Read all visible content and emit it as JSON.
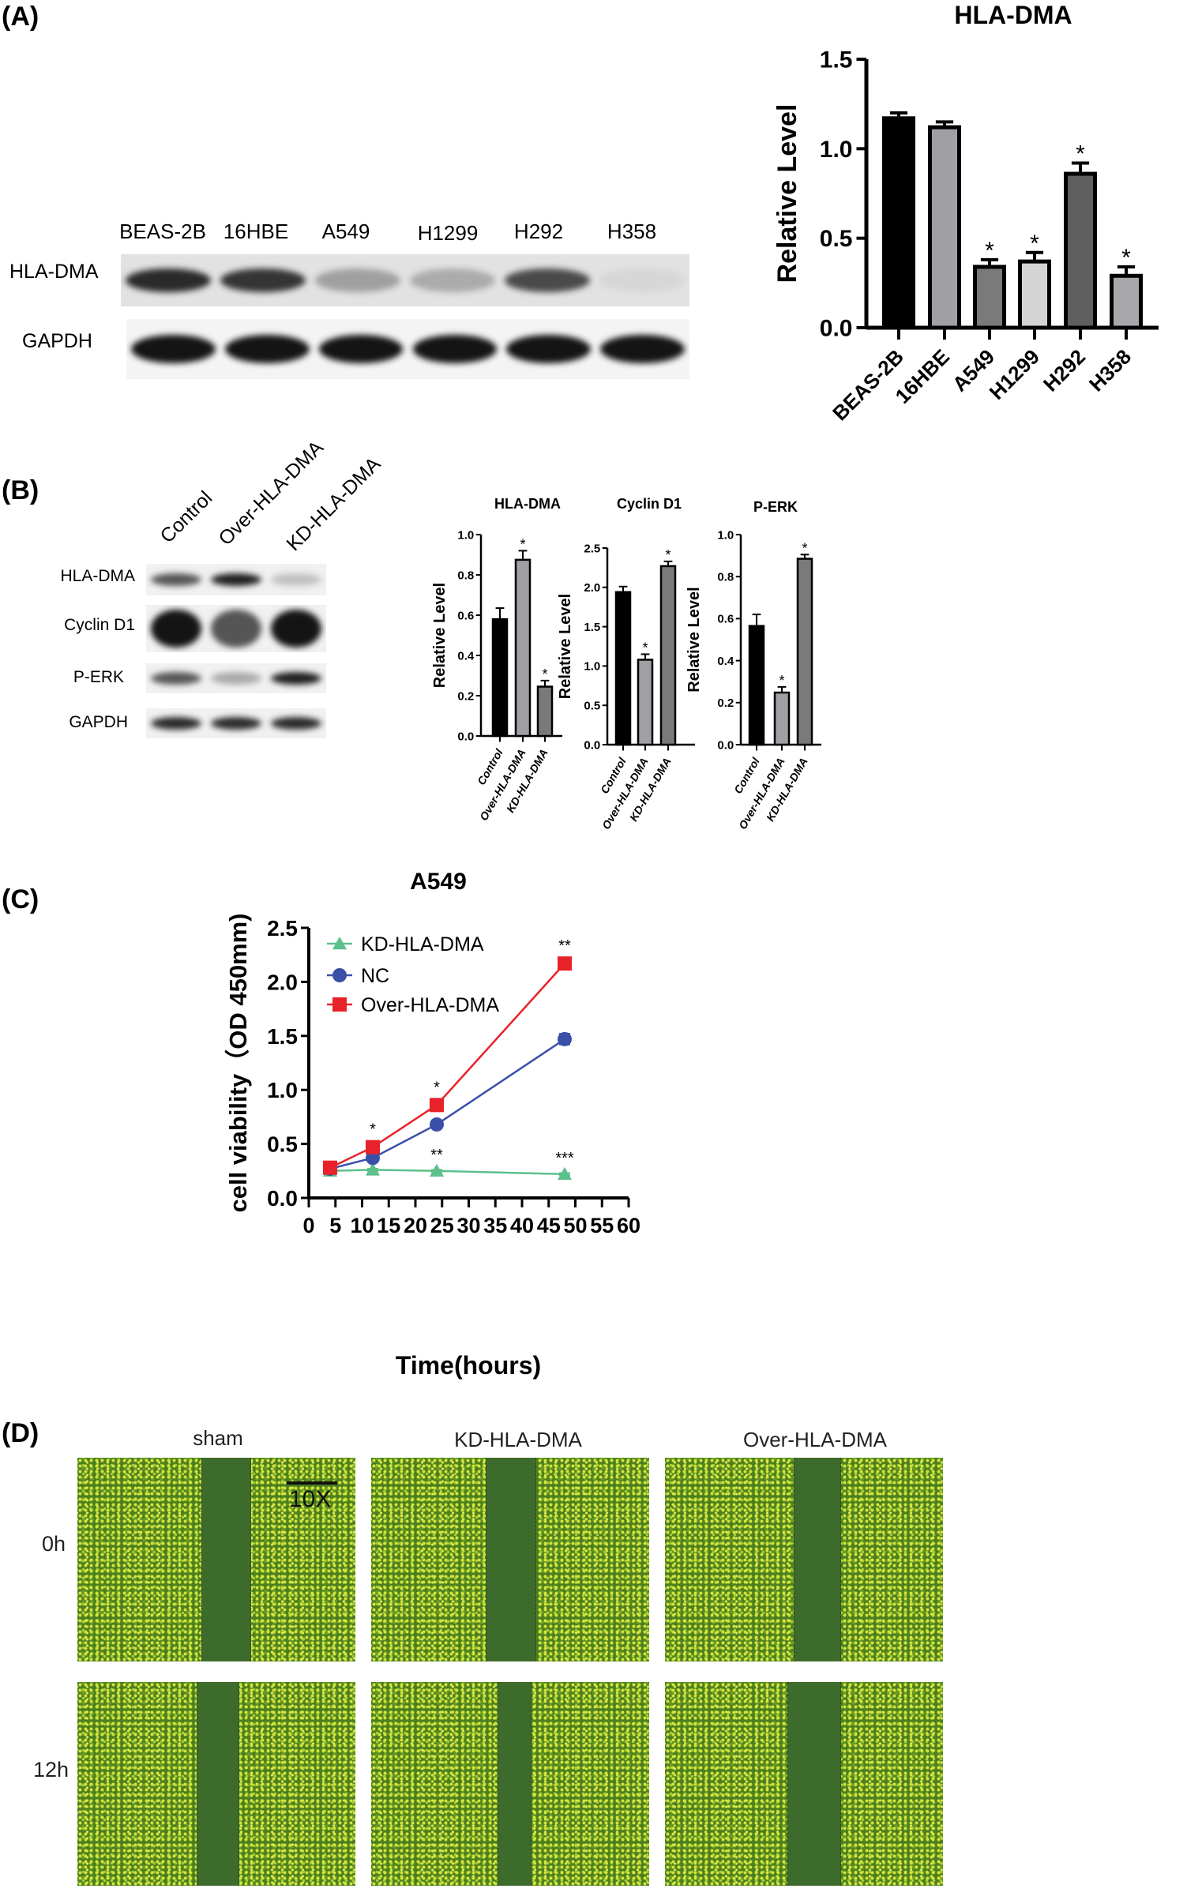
{
  "panels": {
    "A": "(A)",
    "B": "(B)",
    "C": "(C)",
    "D": "(D)"
  },
  "blot_A": {
    "lanes": [
      "BEAS-2B",
      "16HBE",
      "A549",
      "H1299",
      "H292",
      "H358"
    ],
    "rows": [
      "HLA-DMA",
      "GAPDH"
    ],
    "band_intensity": {
      "HLA-DMA": [
        0.9,
        0.85,
        0.35,
        0.3,
        0.75,
        0.1
      ],
      "GAPDH": [
        1,
        1,
        1,
        1,
        1,
        1
      ]
    }
  },
  "blot_B": {
    "lanes": [
      "Control",
      "Over-HLA-DMA",
      "KD-HLA-DMA"
    ],
    "rows": [
      "HLA-DMA",
      "Cyclin D1",
      "P-ERK",
      "GAPDH"
    ],
    "band_intensity": {
      "HLA-DMA": [
        0.7,
        0.95,
        0.2
      ],
      "Cyclin D1": [
        1,
        0.7,
        1
      ],
      "P-ERK": [
        0.7,
        0.3,
        0.95
      ],
      "GAPDH": [
        0.9,
        0.9,
        0.9
      ]
    }
  },
  "chart_data": [
    {
      "type": "bar",
      "title": "HLA-DMA",
      "ylabel": "Relative Level",
      "categories": [
        "BEAS-2B",
        "16HBE",
        "A549",
        "H1299",
        "H292",
        "H358"
      ],
      "values": [
        1.17,
        1.12,
        0.34,
        0.37,
        0.86,
        0.29
      ],
      "errors": [
        0.03,
        0.03,
        0.04,
        0.05,
        0.06,
        0.05
      ],
      "significance": [
        "",
        "",
        "*",
        "*",
        "*",
        "*"
      ],
      "colors": [
        "#000000",
        "#a0a0a4",
        "#7a7a7a",
        "#d4d4d4",
        "#5f5f5f",
        "#a8a8ac"
      ],
      "ylim": [
        0,
        1.5
      ],
      "yticks": [
        "0.0",
        "0.5",
        "1.0",
        "1.5"
      ],
      "grid": false
    },
    {
      "type": "bar",
      "title": "HLA-DMA",
      "ylabel": "Relative Level",
      "categories": [
        "Control",
        "Over-HLA-DMA",
        "KD-HLA-DMA"
      ],
      "values": [
        0.58,
        0.875,
        0.245
      ],
      "errors": [
        0.055,
        0.045,
        0.03
      ],
      "significance": [
        "",
        "*",
        "*"
      ],
      "colors": [
        "#000000",
        "#a0a0a4",
        "#7a7a7a"
      ],
      "ylim": [
        0,
        1.0
      ],
      "yticks": [
        "0.0",
        "0.2",
        "0.4",
        "0.6",
        "0.8",
        "1.0"
      ],
      "grid": false
    },
    {
      "type": "bar",
      "title": "Cyclin D1",
      "ylabel": "Relative Level",
      "categories": [
        "Control",
        "Over-HLA-DMA",
        "KD-HLA-DMA"
      ],
      "values": [
        1.94,
        1.08,
        2.27
      ],
      "errors": [
        0.07,
        0.07,
        0.06
      ],
      "significance": [
        "",
        "*",
        "*"
      ],
      "colors": [
        "#000000",
        "#a0a0a4",
        "#7a7a7a"
      ],
      "ylim": [
        0,
        2.5
      ],
      "yticks": [
        "0.0",
        "0.5",
        "1.0",
        "1.5",
        "2.0",
        "2.5"
      ],
      "grid": false
    },
    {
      "type": "bar",
      "title": "P-ERK",
      "ylabel": "Relative Level",
      "categories": [
        "Control",
        "Over-HLA-DMA",
        "KD-HLA-DMA"
      ],
      "values": [
        0.565,
        0.248,
        0.885
      ],
      "errors": [
        0.055,
        0.027,
        0.02
      ],
      "significance": [
        "",
        "*",
        "*"
      ],
      "colors": [
        "#000000",
        "#a0a0a4",
        "#7a7a7a"
      ],
      "ylim": [
        0,
        1.0
      ],
      "yticks": [
        "0.0",
        "0.2",
        "0.4",
        "0.6",
        "0.8",
        "1.0"
      ],
      "grid": false
    },
    {
      "type": "line",
      "title": "A549",
      "xlabel": "Time(hours)",
      "ylabel": "cell viability（OD 450mm)",
      "xlim": [
        0,
        60
      ],
      "ylim": [
        0,
        2.5
      ],
      "xticks": [
        "0",
        "5",
        "10",
        "15",
        "20",
        "25",
        "30",
        "35",
        "40",
        "45",
        "50",
        "55",
        "60"
      ],
      "yticks": [
        "0.0",
        "0.5",
        "1.0",
        "1.5",
        "2.0",
        "2.5"
      ],
      "x": [
        4,
        12,
        24,
        48
      ],
      "legend_position": "top-left",
      "grid": false,
      "series": [
        {
          "name": "KD-HLA-DMA",
          "color": "#5cc08a",
          "marker": "triangle",
          "values": [
            0.25,
            0.26,
            0.25,
            0.22
          ],
          "errors": [
            0.01,
            0.01,
            0.01,
            0.01
          ],
          "significance": [
            "",
            "*",
            "**",
            "***"
          ]
        },
        {
          "name": "NC",
          "color": "#3a4fa8",
          "marker": "circle",
          "values": [
            0.27,
            0.37,
            0.68,
            1.47
          ],
          "errors": [
            0.01,
            0.02,
            0.02,
            0.05
          ],
          "significance": [
            "",
            "",
            "",
            ""
          ]
        },
        {
          "name": "Over-HLA-DMA",
          "color": "#e8222a",
          "marker": "square",
          "values": [
            0.28,
            0.47,
            0.86,
            2.17
          ],
          "errors": [
            0.01,
            0.02,
            0.02,
            0.02
          ],
          "significance": [
            "",
            "*",
            "*",
            "**"
          ]
        }
      ]
    }
  ],
  "migration": {
    "columns": [
      "sham",
      "KD-HLA-DMA",
      "Over-HLA-DMA"
    ],
    "rows": [
      "0h",
      "12h"
    ],
    "scale_label": "10X"
  }
}
